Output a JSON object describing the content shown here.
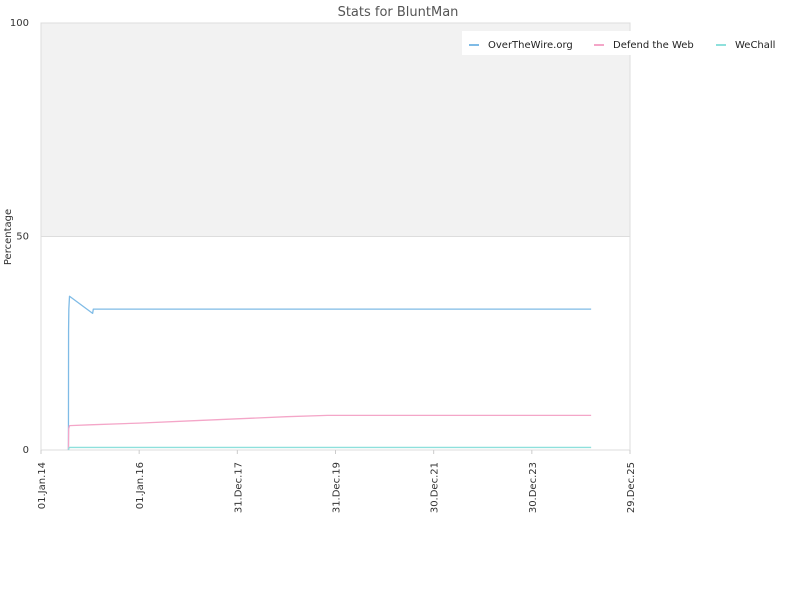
{
  "chart_data": {
    "type": "line",
    "title": "Stats for BluntMan",
    "xlabel": "",
    "ylabel": "Percentage",
    "ylim": [
      0,
      100
    ],
    "yticks": [
      0,
      50,
      100
    ],
    "xlim": [
      "2014-01-01",
      "2025-12-29"
    ],
    "xticks": [
      {
        "date": "2014-01-01",
        "label": "01.Jan.14"
      },
      {
        "date": "2016-01-01",
        "label": "01.Jan.16"
      },
      {
        "date": "2017-12-31",
        "label": "31.Dec.17"
      },
      {
        "date": "2019-12-31",
        "label": "31.Dec.19"
      },
      {
        "date": "2021-12-30",
        "label": "30.Dec.21"
      },
      {
        "date": "2023-12-30",
        "label": "30.Dec.23"
      },
      {
        "date": "2025-12-29",
        "label": "29.Dec.25"
      }
    ],
    "shaded_band": [
      50,
      100
    ],
    "legend_position": "top-right",
    "series": [
      {
        "name": "OverTheWire.org",
        "color": "#7fbbe6",
        "points": [
          [
            "2014-07-24",
            0
          ],
          [
            "2014-07-25",
            28
          ],
          [
            "2014-07-27",
            33
          ],
          [
            "2014-08-01",
            36
          ],
          [
            "2015-01-20",
            32
          ],
          [
            "2015-01-25",
            33
          ],
          [
            "2025-03-15",
            33
          ]
        ]
      },
      {
        "name": "Defend the Web",
        "color": "#f4a6c8",
        "points": [
          [
            "2014-07-24",
            0
          ],
          [
            "2014-07-26",
            5
          ],
          [
            "2014-08-01",
            5.7
          ],
          [
            "2015-01-01",
            5.9
          ],
          [
            "2016-01-01",
            6.3
          ],
          [
            "2017-01-01",
            6.8
          ],
          [
            "2018-01-01",
            7.3
          ],
          [
            "2019-01-01",
            7.8
          ],
          [
            "2019-11-01",
            8.1
          ],
          [
            "2025-03-15",
            8.1
          ]
        ]
      },
      {
        "name": "WeChall",
        "color": "#8ee0dc",
        "points": [
          [
            "2014-07-24",
            0
          ],
          [
            "2014-07-30",
            0.6
          ],
          [
            "2025-03-15",
            0.6
          ]
        ]
      }
    ]
  }
}
